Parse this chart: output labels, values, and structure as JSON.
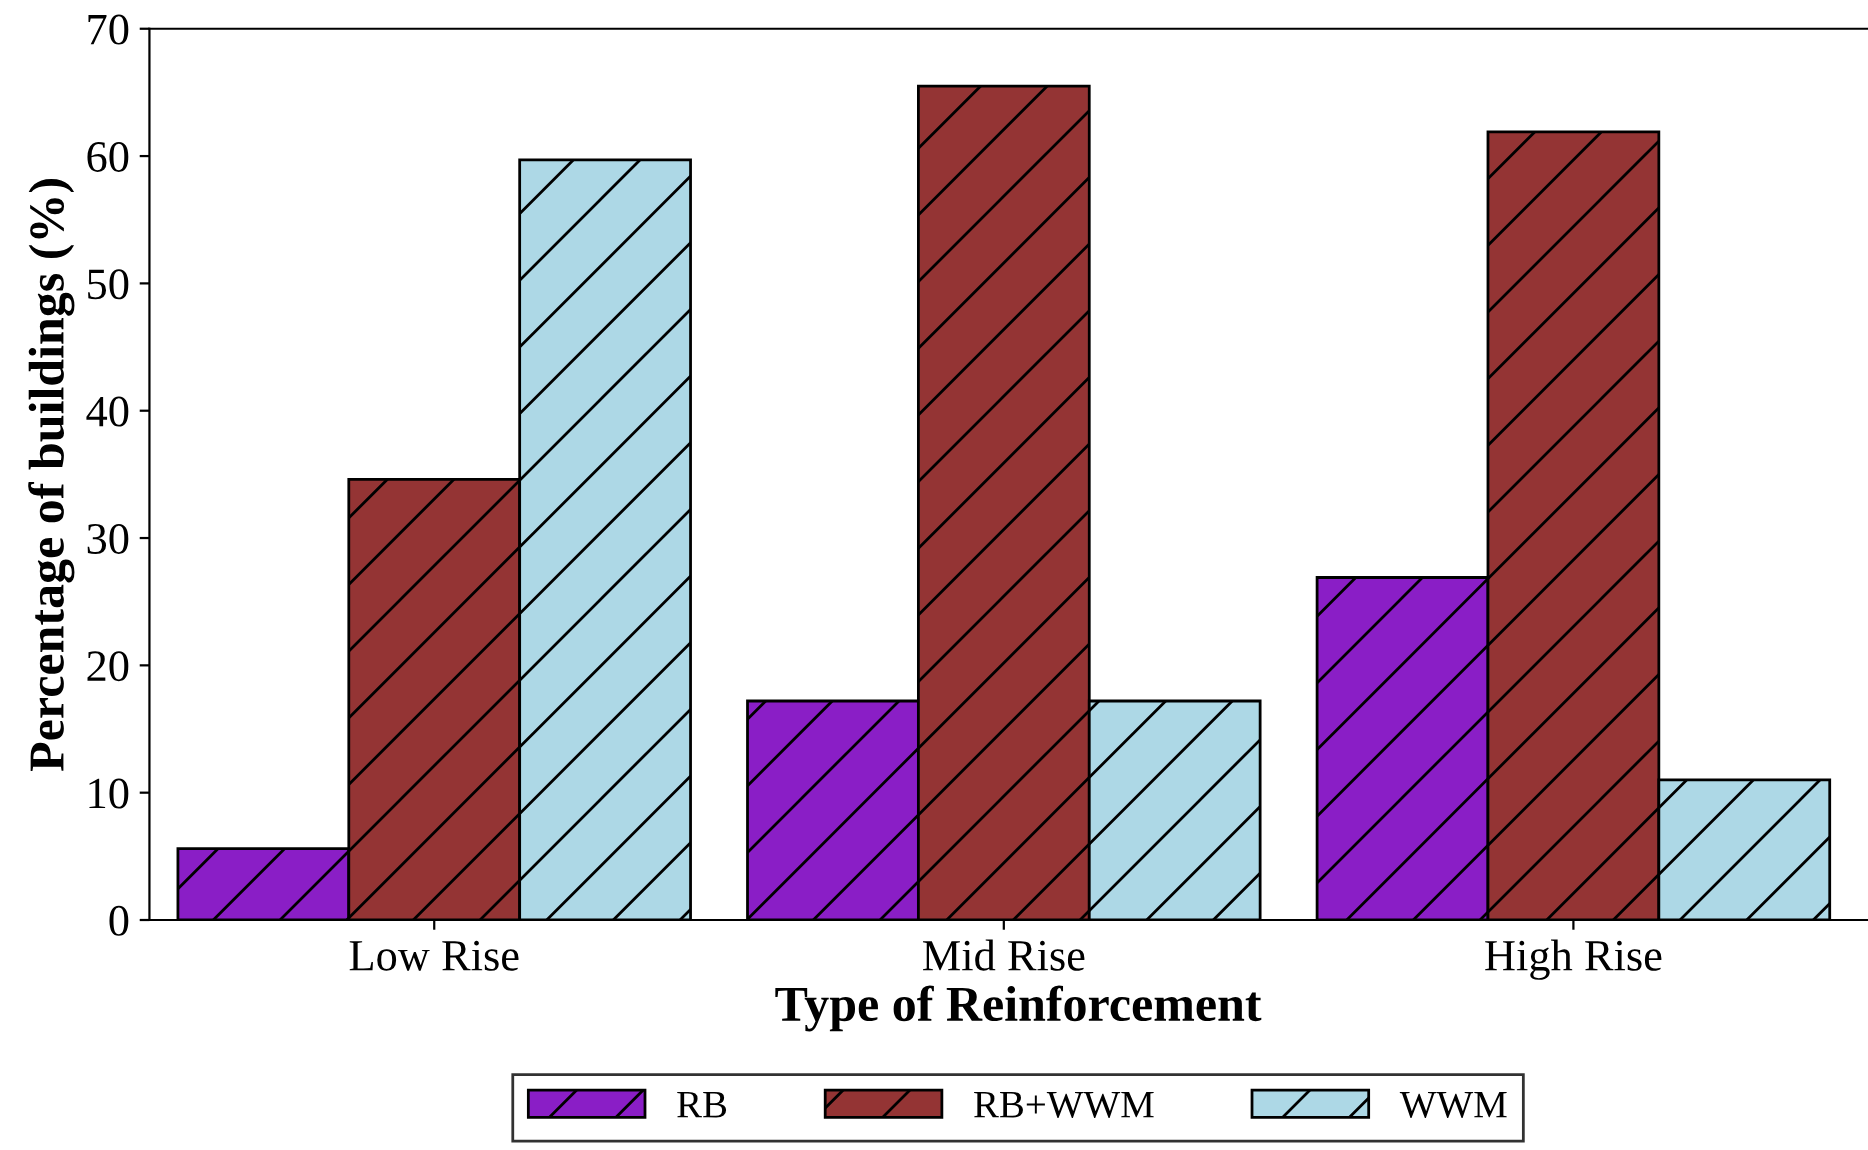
{
  "chart_data": {
    "type": "bar",
    "xlabel": "Type of Reinforcement",
    "ylabel": "Percentage of buildings (%)",
    "categories": [
      "Low Rise",
      "Mid Rise",
      "High Rise"
    ],
    "series": [
      {
        "name": "RB",
        "color": "#8a1ec6",
        "values": [
          5.6,
          17.2,
          26.9
        ]
      },
      {
        "name": "RB+WWM",
        "color": "#943434",
        "values": [
          34.6,
          65.5,
          61.9
        ]
      },
      {
        "name": "WWM",
        "color": "#add8e6",
        "values": [
          59.7,
          17.2,
          11.0
        ]
      }
    ],
    "ylim": [
      0,
      70
    ],
    "yticks": [
      0,
      10,
      20,
      30,
      40,
      50,
      60,
      70
    ],
    "grid": false,
    "legend": "bottom"
  }
}
